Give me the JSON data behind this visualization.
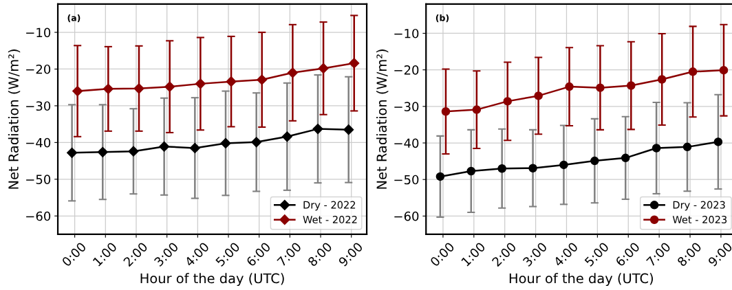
{
  "chart_data": [
    {
      "type": "line",
      "annotations": [
        "(a)"
      ],
      "xlabel": "Hour of the day (UTC)",
      "ylabel": "Net Radiation (W/m²)",
      "categories": [
        "0:00",
        "1:00",
        "2:00",
        "3:00",
        "4:00",
        "5:00",
        "6:00",
        "7:00",
        "8:00",
        "9:00"
      ],
      "series": [
        {
          "name": "Dry - 2022",
          "color": "#000000",
          "values": [
            -42.8,
            -42.6,
            -42.4,
            -41.1,
            -41.5,
            -40.2,
            -39.9,
            -38.4,
            -36.3,
            -36.5
          ],
          "errors": [
            13.1,
            12.9,
            11.6,
            13.2,
            13.7,
            14.2,
            13.4,
            14.6,
            14.7,
            14.4
          ]
        },
        {
          "name": "Wet - 2022",
          "color": "#8b0000",
          "values": [
            -26.0,
            -25.4,
            -25.3,
            -24.8,
            -24.0,
            -23.4,
            -22.9,
            -21.0,
            -19.8,
            -18.4
          ],
          "errors": [
            12.4,
            11.5,
            11.6,
            12.5,
            12.6,
            12.3,
            12.9,
            13.1,
            12.6,
            13.0
          ]
        }
      ],
      "ylim": [
        -65,
        -2.3
      ],
      "yticks": [
        {
          "value": -60,
          "label": "−60"
        },
        {
          "value": -50,
          "label": "−50"
        },
        {
          "value": -40,
          "label": "−40"
        },
        {
          "value": -30,
          "label": "−30"
        },
        {
          "value": -20,
          "label": "−20"
        },
        {
          "value": -10,
          "label": "−10"
        }
      ],
      "grid": true,
      "legend": "lower right",
      "marker": "diamond",
      "line_style": "solid"
    },
    {
      "type": "line",
      "annotations": [
        "(b)"
      ],
      "xlabel": "Hour of the day (UTC)",
      "ylabel": "Net Radiation (W/m²)",
      "categories": [
        "0:00",
        "1:00",
        "2:00",
        "3:00",
        "4:00",
        "5:00",
        "6:00",
        "7:00",
        "8:00",
        "9:00"
      ],
      "series": [
        {
          "name": "Dry - 2023",
          "color": "#000000",
          "values": [
            -49.2,
            -47.7,
            -47.0,
            -46.9,
            -46.0,
            -44.9,
            -44.1,
            -41.4,
            -41.1,
            -39.7
          ],
          "errors": [
            11.1,
            11.3,
            10.8,
            10.5,
            10.8,
            11.5,
            11.3,
            12.5,
            12.1,
            12.9
          ]
        },
        {
          "name": "Wet - 2023",
          "color": "#8b0000",
          "values": [
            -31.4,
            -30.9,
            -28.6,
            -27.1,
            -24.6,
            -24.9,
            -24.3,
            -22.6,
            -20.5,
            -20.1
          ],
          "errors": [
            11.6,
            10.6,
            10.7,
            10.5,
            10.7,
            11.5,
            12.0,
            12.5,
            12.4,
            12.5
          ]
        }
      ],
      "ylim": [
        -65,
        -2
      ],
      "yticks": [
        {
          "value": -60,
          "label": "−60"
        },
        {
          "value": -50,
          "label": "−50"
        },
        {
          "value": -40,
          "label": "−40"
        },
        {
          "value": -30,
          "label": "−30"
        },
        {
          "value": -20,
          "label": "−20"
        },
        {
          "value": -10,
          "label": "−10"
        }
      ],
      "grid": true,
      "legend": "lower right",
      "marker": "circle",
      "line_style": "solid"
    }
  ]
}
